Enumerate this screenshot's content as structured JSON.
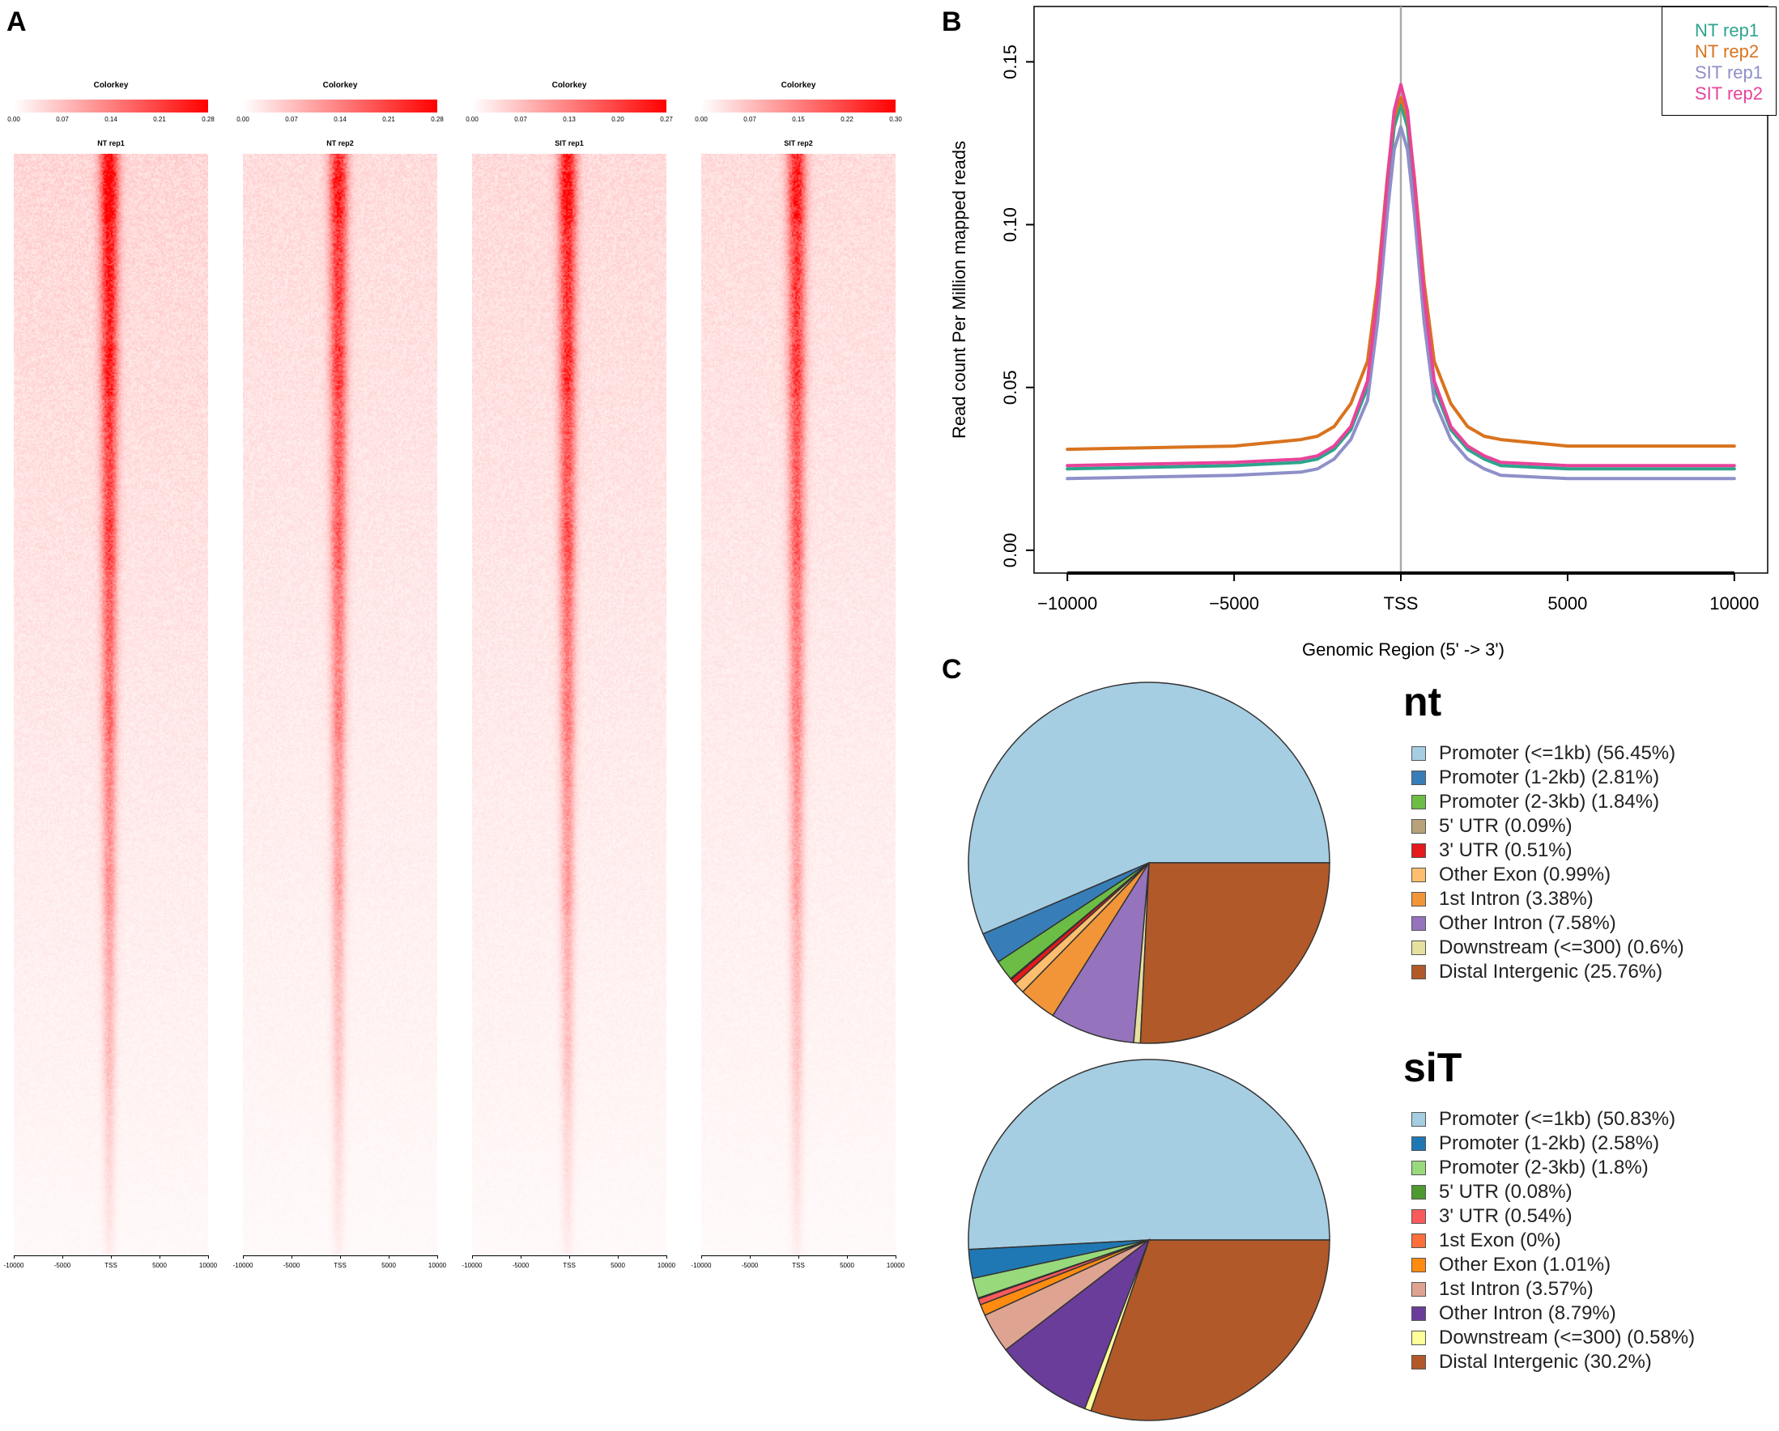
{
  "panels": {
    "A": "A",
    "B": "B",
    "C": "C"
  },
  "heatmaps": [
    {
      "title": "NT rep1",
      "colorkey_title": "Colorkey",
      "colorkey_ticks": [
        "0.00",
        "0.07",
        "0.14",
        "0.21",
        "0.28"
      ],
      "xticks": [
        "-10000",
        "-5000",
        "TSS",
        "5000",
        "10000"
      ],
      "intensity": 1.0
    },
    {
      "title": "NT rep2",
      "colorkey_title": "Colorkey",
      "colorkey_ticks": [
        "0.00",
        "0.07",
        "0.14",
        "0.21",
        "0.28"
      ],
      "xticks": [
        "-10000",
        "-5000",
        "TSS",
        "5000",
        "10000"
      ],
      "intensity": 0.85
    },
    {
      "title": "SIT rep1",
      "colorkey_title": "Colorkey",
      "colorkey_ticks": [
        "0.00",
        "0.07",
        "0.13",
        "0.20",
        "0.27"
      ],
      "xticks": [
        "-10000",
        "-5000",
        "TSS",
        "5000",
        "10000"
      ],
      "intensity": 0.9
    },
    {
      "title": "SIT rep2",
      "colorkey_title": "Colorkey",
      "colorkey_ticks": [
        "0.00",
        "0.07",
        "0.15",
        "0.22",
        "0.30"
      ],
      "xticks": [
        "-10000",
        "-5000",
        "TSS",
        "5000",
        "10000"
      ],
      "intensity": 0.85
    }
  ],
  "chart_data": [
    {
      "type": "line",
      "title": "",
      "xlabel": "Genomic Region (5' -> 3')",
      "ylabel": "Read count Per Million mapped reads",
      "xlim": [
        -11000,
        11000
      ],
      "ylim": [
        -0.007,
        0.167
      ],
      "xticks": [
        -10000,
        -5000,
        0,
        5000,
        10000
      ],
      "xtick_labels": [
        "−10000",
        "−5000",
        "TSS",
        "5000",
        "10000"
      ],
      "yticks": [
        0.0,
        0.05,
        0.1,
        0.15
      ],
      "ytick_labels": [
        "0.00",
        "0.05",
        "0.10",
        "0.15"
      ],
      "vline_x": 0,
      "x": [
        -10000,
        -7500,
        -5000,
        -4000,
        -3000,
        -2500,
        -2000,
        -1500,
        -1000,
        -700,
        -400,
        -200,
        0,
        200,
        400,
        700,
        1000,
        1500,
        2000,
        2500,
        3000,
        4000,
        5000,
        7500,
        10000
      ],
      "series": [
        {
          "name": "NT rep1",
          "color": "#2ca58d",
          "values": [
            0.025,
            0.0255,
            0.026,
            0.0265,
            0.027,
            0.028,
            0.031,
            0.037,
            0.05,
            0.075,
            0.11,
            0.13,
            0.137,
            0.13,
            0.11,
            0.075,
            0.05,
            0.037,
            0.031,
            0.028,
            0.026,
            0.0255,
            0.025,
            0.025,
            0.025
          ]
        },
        {
          "name": "NT rep2",
          "color": "#d9731f",
          "values": [
            0.031,
            0.0315,
            0.032,
            0.033,
            0.034,
            0.035,
            0.038,
            0.045,
            0.058,
            0.082,
            0.115,
            0.133,
            0.139,
            0.133,
            0.115,
            0.082,
            0.058,
            0.045,
            0.038,
            0.035,
            0.034,
            0.033,
            0.032,
            0.032,
            0.032
          ]
        },
        {
          "name": "SIT rep1",
          "color": "#8f8fc9",
          "values": [
            0.022,
            0.0225,
            0.023,
            0.0235,
            0.024,
            0.025,
            0.028,
            0.034,
            0.046,
            0.07,
            0.104,
            0.123,
            0.13,
            0.123,
            0.104,
            0.07,
            0.046,
            0.034,
            0.028,
            0.025,
            0.023,
            0.0225,
            0.022,
            0.022,
            0.022
          ]
        },
        {
          "name": "SIT rep2",
          "color": "#e8439a",
          "values": [
            0.026,
            0.0265,
            0.027,
            0.0275,
            0.028,
            0.029,
            0.032,
            0.038,
            0.052,
            0.078,
            0.114,
            0.135,
            0.143,
            0.135,
            0.114,
            0.078,
            0.052,
            0.038,
            0.032,
            0.029,
            0.027,
            0.0265,
            0.026,
            0.026,
            0.026
          ]
        }
      ]
    },
    {
      "type": "pie",
      "title": "nt",
      "categories": [
        "Promoter (<=1kb)",
        "Promoter (1-2kb)",
        "Promoter (2-3kb)",
        "5' UTR",
        "3' UTR",
        "Other Exon",
        "1st Intron",
        "Other Intron",
        "Downstream (<=300)",
        "Distal Intergenic"
      ],
      "legend_labels": [
        "Promoter (<=1kb) (56.45%)",
        "Promoter (1-2kb) (2.81%)",
        "Promoter (2-3kb) (1.84%)",
        "5' UTR (0.09%)",
        "3' UTR (0.51%)",
        "Other Exon (0.99%)",
        "1st Intron (3.38%)",
        "Other Intron (7.58%)",
        "Downstream (<=300) (0.6%)",
        "Distal Intergenic (25.76%)"
      ],
      "values": [
        56.45,
        2.81,
        1.84,
        0.09,
        0.51,
        0.99,
        3.38,
        7.58,
        0.6,
        25.76
      ],
      "colors": [
        "#a6cee3",
        "#377eb8",
        "#6cbd45",
        "#b8a27a",
        "#e41a1c",
        "#fdbf6f",
        "#f29539",
        "#9673bd",
        "#e6e0a0",
        "#b15928"
      ]
    },
    {
      "type": "pie",
      "title": "siT",
      "categories": [
        "Promoter (<=1kb)",
        "Promoter (1-2kb)",
        "Promoter (2-3kb)",
        "5' UTR",
        "3' UTR",
        "1st Exon",
        "Other Exon",
        "1st Intron",
        "Other Intron",
        "Downstream (<=300)",
        "Distal Intergenic"
      ],
      "legend_labels": [
        "Promoter (<=1kb) (50.83%)",
        "Promoter (1-2kb) (2.58%)",
        "Promoter (2-3kb) (1.8%)",
        "5' UTR (0.08%)",
        "3' UTR (0.54%)",
        "1st Exon (0%)",
        "Other Exon (1.01%)",
        "1st Intron (3.57%)",
        "Other Intron (8.79%)",
        "Downstream (<=300) (0.58%)",
        "Distal Intergenic (30.2%)"
      ],
      "values": [
        50.83,
        2.58,
        1.8,
        0.08,
        0.54,
        0.0,
        1.01,
        3.57,
        8.79,
        0.58,
        30.2
      ],
      "colors": [
        "#a6cee3",
        "#1f78b4",
        "#98d97c",
        "#4d9a30",
        "#fb5a5c",
        "#ff6f3c",
        "#ff8c10",
        "#dea491",
        "#6a3d9a",
        "#ffff99",
        "#b15928"
      ]
    }
  ]
}
